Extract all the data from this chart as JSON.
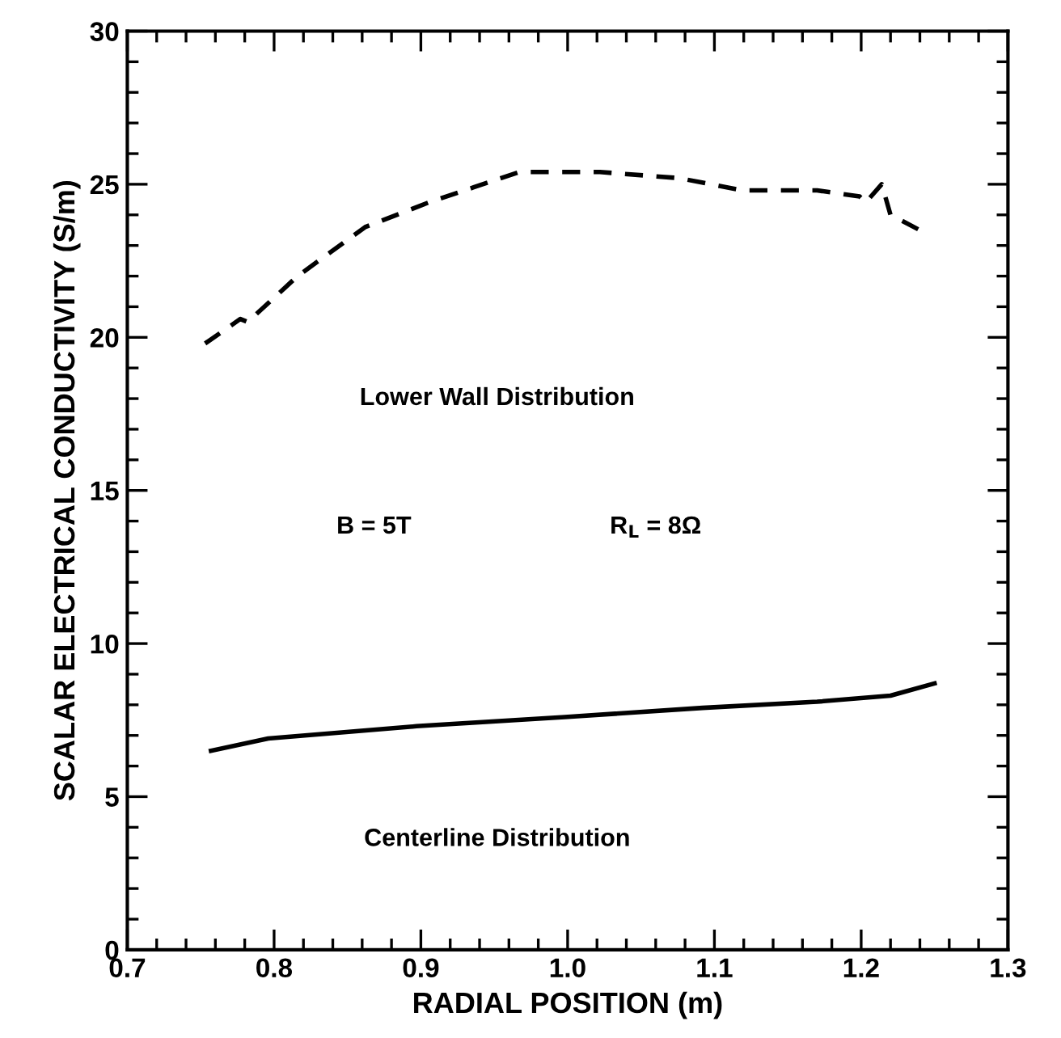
{
  "chart_data": {
    "type": "line",
    "xlabel": "RADIAL POSITION (m)",
    "ylabel": "SCALAR ELECTRICAL CONDUCTIVITY (S/m)",
    "xlim": [
      0.7,
      1.3
    ],
    "ylim": [
      0,
      30
    ],
    "xticks": [
      0.7,
      0.8,
      0.9,
      {
        "value": 1,
        "label": "1.0"
      },
      1.1,
      1.2,
      1.3
    ],
    "yticks": [
      0,
      5,
      10,
      15,
      20,
      25,
      30
    ],
    "grid": false,
    "marker": "none",
    "series": [
      {
        "color": "#000000",
        "line_style": "dashed",
        "x": [
          0.753,
          0.777,
          0.782,
          0.816,
          0.862,
          0.905,
          0.936,
          0.967,
          1.022,
          1.076,
          1.119,
          1.17,
          1.199,
          1.203,
          1.214,
          1.22,
          1.244
        ],
        "values": [
          19.8,
          20.6,
          20.5,
          22.0,
          23.6,
          24.4,
          24.9,
          25.4,
          25.4,
          25.2,
          24.8,
          24.8,
          24.6,
          24.4,
          25.0,
          24.0,
          23.4
        ]
      },
      {
        "color": "#000000",
        "line_style": "solid",
        "x": [
          0.757,
          0.796,
          0.897,
          0.998,
          1.092,
          1.17,
          1.22,
          1.25
        ],
        "values": [
          6.5,
          6.9,
          7.3,
          7.6,
          7.9,
          8.1,
          8.3,
          8.7
        ]
      }
    ],
    "annotations": [
      "Lower Wall Distribution",
      "B = 5T",
      "R$_{L}$ = 8Ω",
      "Centerline Distribution"
    ]
  }
}
